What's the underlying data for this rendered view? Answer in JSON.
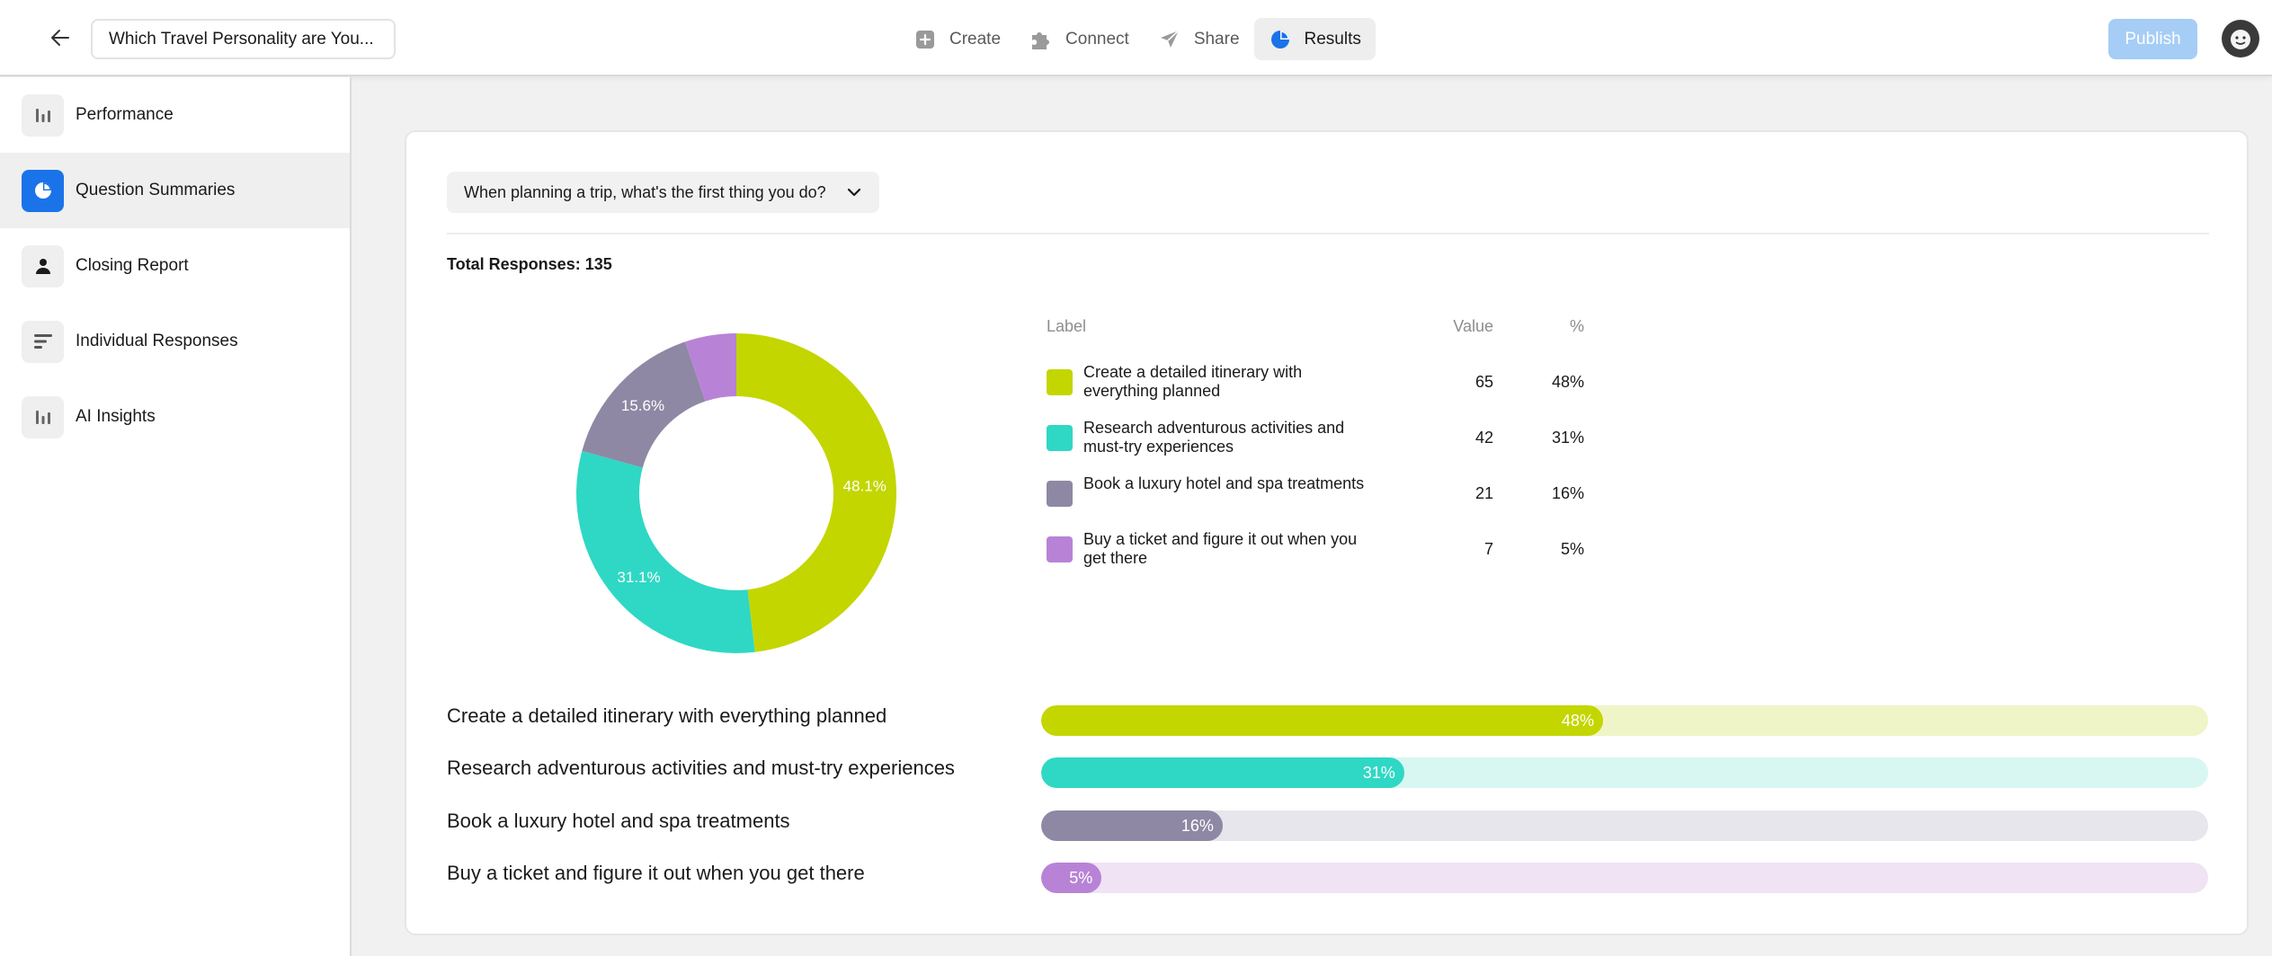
{
  "header": {
    "form_title": "Which Travel Personality are You...",
    "nav": [
      {
        "label": "Create",
        "icon": "plus-square-icon"
      },
      {
        "label": "Connect",
        "icon": "puzzle-icon"
      },
      {
        "label": "Share",
        "icon": "paper-plane-icon"
      },
      {
        "label": "Results",
        "icon": "pie-chart-icon",
        "active": true
      }
    ],
    "publish_label": "Publish"
  },
  "sidebar": {
    "items": [
      {
        "label": "Performance",
        "icon": "bar-chart-icon"
      },
      {
        "label": "Question Summaries",
        "icon": "pie-chart-icon",
        "active": true
      },
      {
        "label": "Closing Report",
        "icon": "person-icon"
      },
      {
        "label": "Individual Responses",
        "icon": "lines-icon"
      },
      {
        "label": "AI Insights",
        "icon": "bar-chart-icon"
      }
    ]
  },
  "main": {
    "question_select": "When planning a trip, what's the first thing you do?",
    "total_responses": "Total Responses: 135",
    "legend_headers": {
      "label": "Label",
      "value": "Value",
      "pct": "%"
    }
  },
  "colors": {
    "lime": "#c3d600",
    "teal": "#2fd8c4",
    "gray_purple": "#8e88a4",
    "lilac": "#b883d6",
    "accent": "#1a73e8"
  },
  "chart_data": {
    "type": "pie",
    "total": 135,
    "categories": [
      "Create a detailed itinerary with everything planned",
      "Research adventurous activities and must-try experiences",
      "Book a luxury hotel and spa treatments",
      "Buy a ticket and figure it out when you get there"
    ],
    "values": [
      65,
      42,
      21,
      7
    ],
    "percent_labels": [
      "48%",
      "31%",
      "16%",
      "5%"
    ],
    "slice_labels": [
      "48.1%",
      "31.1%",
      "15.6%",
      ""
    ],
    "colors": [
      "#c3d600",
      "#2fd8c4",
      "#8e88a4",
      "#b883d6"
    ]
  }
}
